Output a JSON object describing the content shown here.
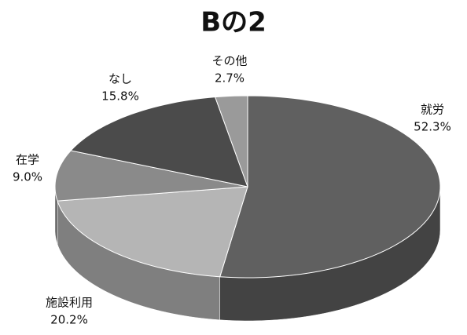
{
  "chart_data": {
    "type": "pie",
    "title": "Bの2",
    "categories": [
      "就労",
      "施設利用",
      "在学",
      "なし",
      "その他"
    ],
    "values": [
      52.3,
      20.2,
      9.0,
      15.8,
      2.7
    ],
    "value_labels": [
      "52.3%",
      "20.2%",
      "9.0%",
      "15.8%",
      "2.7%"
    ],
    "colors": [
      "#606060",
      "#b5b5b5",
      "#8a8a8a",
      "#4b4b4b",
      "#9a9a9a"
    ]
  }
}
